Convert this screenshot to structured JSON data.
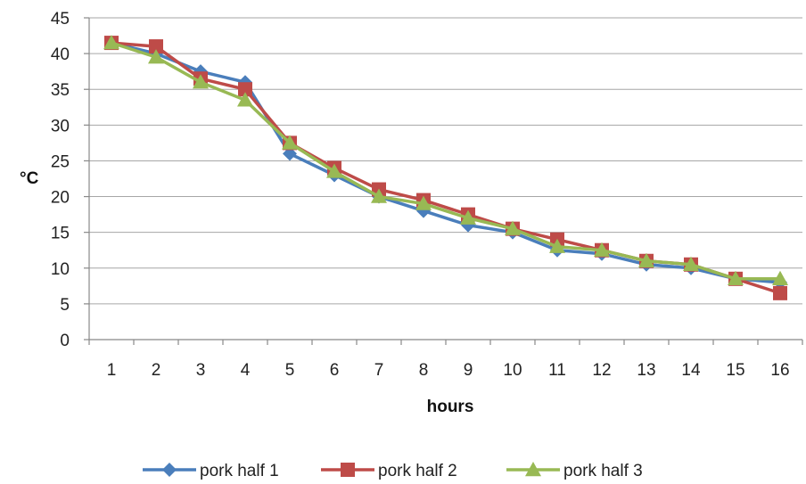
{
  "chart_data": {
    "type": "line",
    "xlabel": "hours",
    "ylabel": "°C",
    "ylim": [
      0,
      45
    ],
    "yticks": [
      0,
      5,
      10,
      15,
      20,
      25,
      30,
      35,
      40,
      45
    ],
    "x": [
      1,
      2,
      3,
      4,
      5,
      6,
      7,
      8,
      9,
      10,
      11,
      12,
      13,
      14,
      15,
      16
    ],
    "grid": "horizontal",
    "legend_position": "bottom",
    "series": [
      {
        "name": "pork half 1",
        "color": "#4a7ebb",
        "marker": "diamond",
        "values": [
          41.5,
          40.0,
          37.5,
          36.0,
          26.0,
          23.0,
          20.0,
          18.0,
          16.0,
          15.0,
          12.5,
          12.0,
          10.5,
          10.0,
          8.5,
          8.0
        ]
      },
      {
        "name": "pork half 2",
        "color": "#be4b48",
        "marker": "square",
        "values": [
          41.5,
          41.0,
          36.5,
          35.0,
          27.5,
          24.0,
          21.0,
          19.5,
          17.5,
          15.5,
          14.0,
          12.5,
          11.0,
          10.5,
          8.5,
          6.5
        ]
      },
      {
        "name": "pork half 3",
        "color": "#98b954",
        "marker": "triangle",
        "values": [
          41.5,
          39.5,
          36.0,
          33.5,
          27.5,
          23.5,
          20.0,
          19.0,
          17.0,
          15.5,
          13.0,
          12.5,
          11.0,
          10.5,
          8.5,
          8.5
        ]
      }
    ]
  }
}
